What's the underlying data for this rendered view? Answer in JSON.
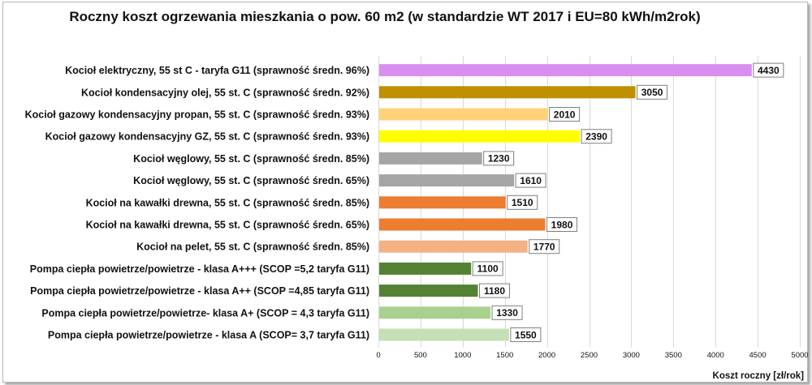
{
  "chart_data": {
    "type": "bar",
    "orientation": "horizontal",
    "title": "Roczny koszt ogrzewania mieszkania o pow. 60 m2 (w standardzie WT 2017 i EU=80 kWh/m2rok)",
    "xlabel": "Koszt roczny [zł/rok]",
    "ylabel": "",
    "xlim": [
      0,
      5000
    ],
    "x_ticks": [
      0,
      500,
      1000,
      1500,
      2000,
      2500,
      3000,
      3500,
      4000,
      4500,
      5000
    ],
    "grid": true,
    "legend": "none",
    "categories": [
      "Kocioł  elektryczny, 55 st C -  taryfa G11 (sprawność średn. 96%)",
      "Kocioł  kondensacyjny olej, 55 st. C (sprawność średn. 92%)",
      "Kocioł gazowy kondensacyjny propan, 55 st. C (sprawność średn. 93%)",
      "Kocioł gazowy kondensacyjny GZ, 55 st. C (sprawność średn. 93%)",
      "Kocioł węglowy,  55 st. C (sprawność średn. 85%)",
      "Kocioł węglowy, 55 st. C (sprawność średn. 65%)",
      "Kocioł na kawałki drewna, 55 st. C (sprawność średn. 85%)",
      "Kocioł na kawałki drewna, 55 st. C (sprawność średn. 65%)",
      "Kocioł na pelet, 55 st. C (sprawność średn. 85%)",
      "Pompa ciepła powietrze/powietrze -  klasa A+++ (SCOP =5,2 taryfa G11)",
      "Pompa ciepła powietrze/powietrze - klasa A++ (SCOP =4,85 taryfa G11)",
      "Pompa ciepła powietrze/powietrze-  klasa A+ (SCOP = 4,3 taryfa G11)",
      "Pompa ciepła powietrze/powietrze - klasa A (SCOP= 3,7 taryfa G11)"
    ],
    "values": [
      4430,
      3050,
      2010,
      2390,
      1230,
      1610,
      1510,
      1980,
      1770,
      1100,
      1180,
      1330,
      1550
    ],
    "colors": [
      "#da8ff0",
      "#bf9000",
      "#ffd27a",
      "#ffff00",
      "#a5a5a5",
      "#a5a5a5",
      "#ed7d31",
      "#ed7d31",
      "#f4b183",
      "#548235",
      "#548235",
      "#a9d18e",
      "#c5e0b4"
    ]
  }
}
